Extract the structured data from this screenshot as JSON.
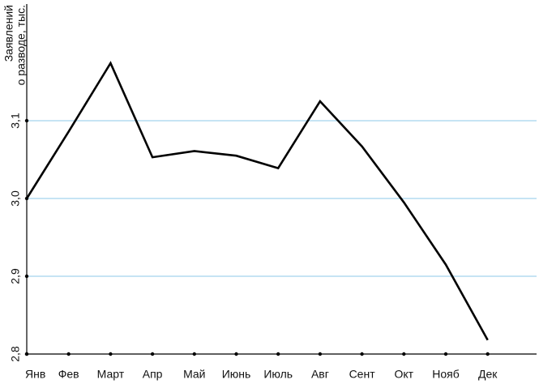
{
  "chart_data": {
    "type": "line",
    "y_label": [
      "Заявлений",
      "о разводе, тыс."
    ],
    "categories": [
      "Янв",
      "Фев",
      "Март",
      "Апр",
      "Май",
      "Июнь",
      "Июль",
      "Авг",
      "Сент",
      "Окт",
      "Нояб",
      "Дек"
    ],
    "values": [
      3.0,
      3.086,
      3.174,
      3.053,
      3.061,
      3.055,
      3.039,
      3.125,
      3.067,
      2.995,
      2.915,
      2.818
    ],
    "color": "#000000",
    "ylim": [
      2.8,
      3.25
    ],
    "yticks": [
      {
        "value": 2.8,
        "label": "2,8"
      },
      {
        "value": 2.9,
        "label": "2,9"
      },
      {
        "value": 3.0,
        "label": "3,0"
      },
      {
        "value": 3.1,
        "label": "3,1"
      }
    ],
    "grid": true,
    "grid_color": "#8ec8ea"
  }
}
